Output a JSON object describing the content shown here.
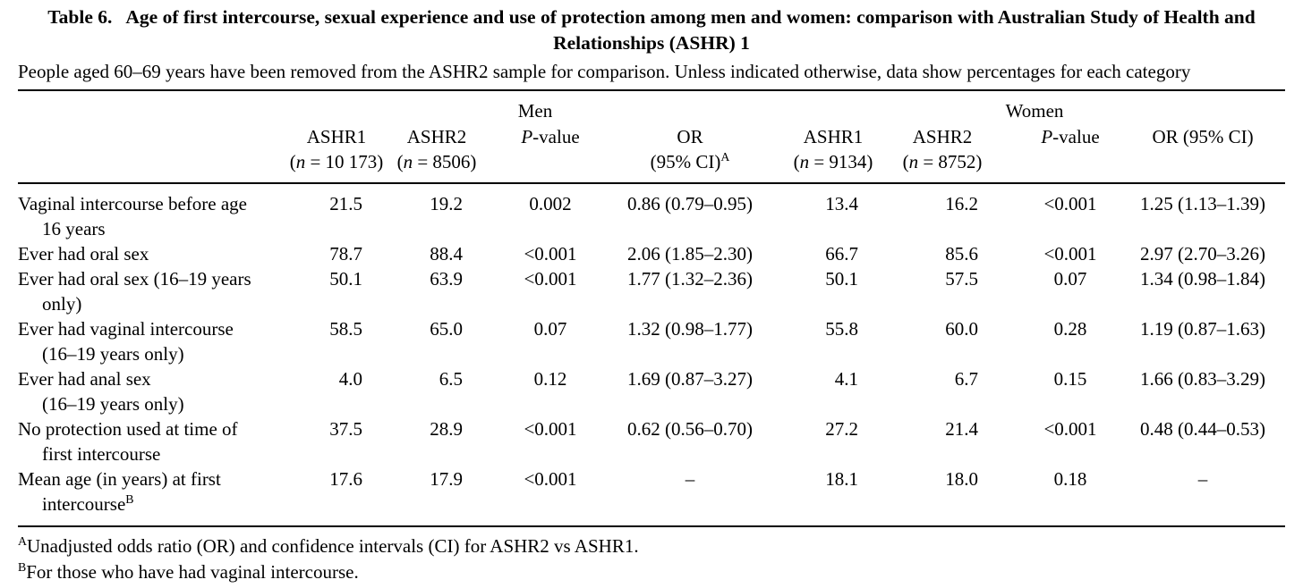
{
  "page": {
    "title_label": "Table 6.",
    "title_text": "Age of first intercourse, sexual experience and use of protection among men and women: comparison with Australian Study of Health and Relationships (ASHR) 1",
    "subtitle": "People aged 60–69 years have been removed from the ASHR2 sample for comparison. Unless indicated otherwise, data show percentages for each category"
  },
  "table": {
    "group_headers": {
      "men": "Men",
      "women": "Women"
    },
    "columns": [
      {
        "id": "men-ashr1",
        "line1": "ASHR1",
        "line2": "(*n* = 10 173)"
      },
      {
        "id": "men-ashr2",
        "line1": "ASHR2",
        "line2": "(*n* = 8506)"
      },
      {
        "id": "men-pvalue",
        "line1": "*P*-value",
        "line2": ""
      },
      {
        "id": "men-or",
        "line1": "OR",
        "line2": "(95% CI)^A^"
      },
      {
        "id": "women-ashr1",
        "line1": "ASHR1",
        "line2": "(*n* = 9134)"
      },
      {
        "id": "women-ashr2",
        "line1": "ASHR2",
        "line2": "(*n* = 8752)"
      },
      {
        "id": "women-pvalue",
        "line1": "*P*-value",
        "line2": ""
      },
      {
        "id": "women-or",
        "line1": "OR (95% CI)",
        "line2": ""
      }
    ],
    "rows": [
      {
        "label": "Vaginal intercourse before age\n16 years",
        "values": [
          "21.5",
          "19.2",
          "0.002",
          "0.86 (0.79–0.95)",
          "13.4",
          "16.2",
          "<0.001",
          "1.25 (1.13–1.39)"
        ]
      },
      {
        "label": "Ever had oral sex",
        "values": [
          "78.7",
          "88.4",
          "<0.001",
          "2.06 (1.85–2.30)",
          "66.7",
          "85.6",
          "<0.001",
          "2.97 (2.70–3.26)"
        ]
      },
      {
        "label": "Ever had oral sex (16–19 years\nonly)",
        "values": [
          "50.1",
          "63.9",
          "<0.001",
          "1.77 (1.32–2.36)",
          "50.1",
          "57.5",
          "0.07",
          "1.34 (0.98–1.84)"
        ]
      },
      {
        "label": "Ever had vaginal intercourse\n(16–19 years only)",
        "values": [
          "58.5",
          "65.0",
          "0.07",
          "1.32 (0.98–1.77)",
          "55.8",
          "60.0",
          "0.28",
          "1.19 (0.87–1.63)"
        ]
      },
      {
        "label": "Ever had anal sex\n(16–19 years only)",
        "values": [
          "4.0",
          "6.5",
          "0.12",
          "1.69 (0.87–3.27)",
          "4.1",
          "6.7",
          "0.15",
          "1.66 (0.83–3.29)"
        ]
      },
      {
        "label": "No protection used at time of\nfirst intercourse",
        "values": [
          "37.5",
          "28.9",
          "<0.001",
          "0.62 (0.56–0.70)",
          "27.2",
          "21.4",
          "<0.001",
          "0.48 (0.44–0.53)"
        ]
      },
      {
        "label": "Mean age (in years) at first\nintercourse^B^",
        "values": [
          "17.6",
          "17.9",
          "<0.001",
          "–",
          "18.1",
          "18.0",
          "0.18",
          "–"
        ]
      }
    ]
  },
  "footnotes": [
    "^A^Unadjusted odds ratio (OR) and confidence intervals (CI) for ASHR2 vs ASHR1.",
    "^B^For those who have had vaginal intercourse."
  ]
}
